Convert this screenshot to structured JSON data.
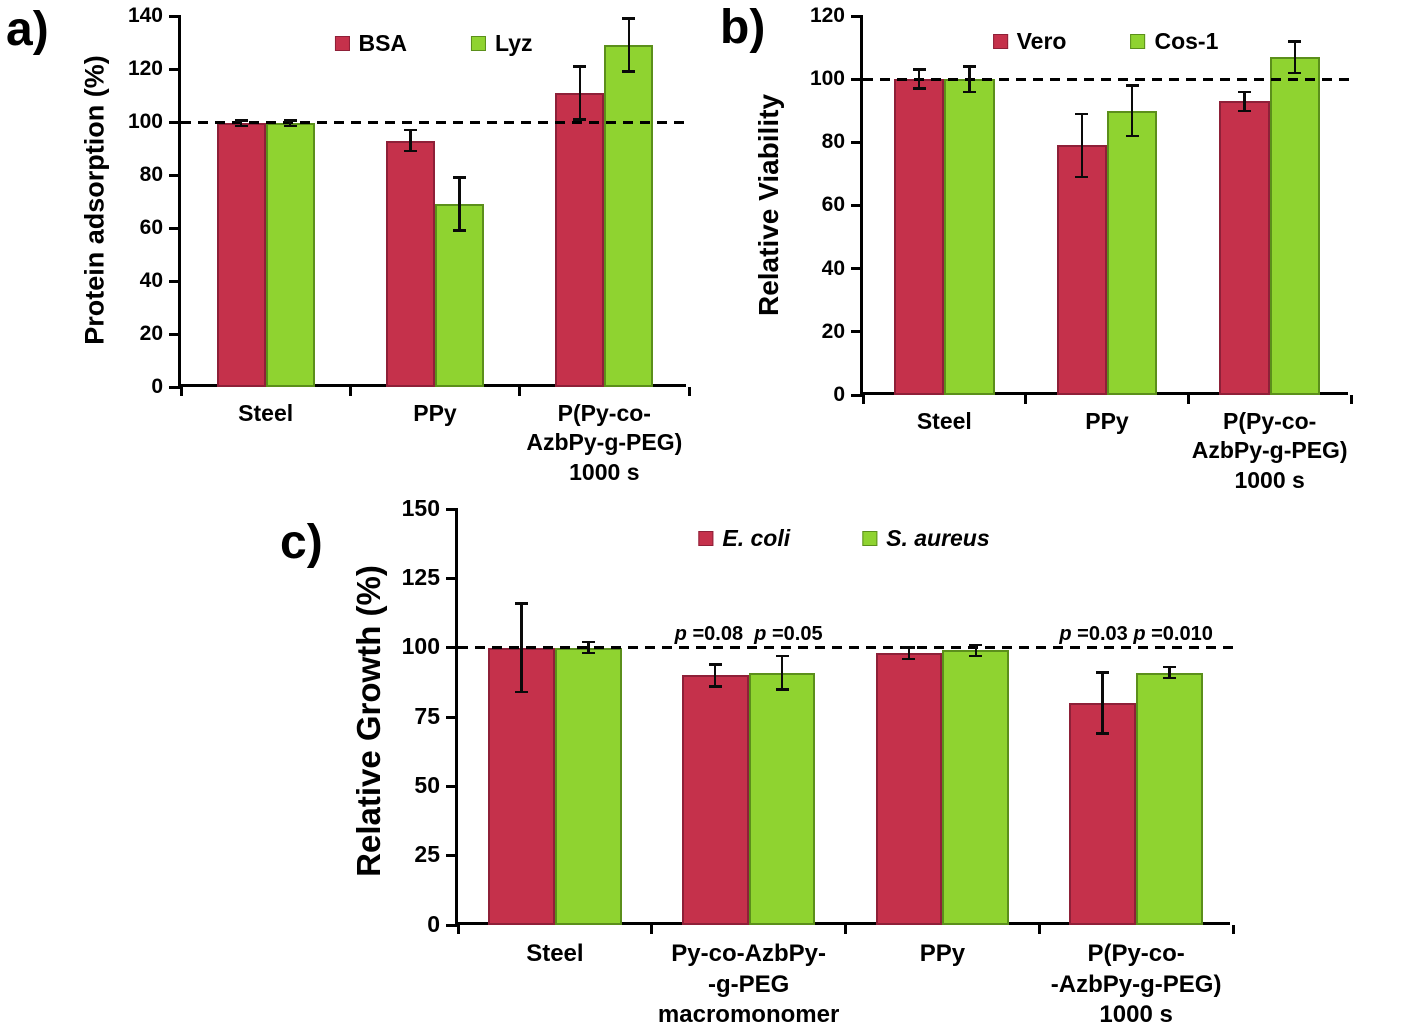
{
  "chart_data": [
    {
      "id": "a",
      "type": "bar",
      "panel_label": "a)",
      "ylabel": "Protein adsorption (%)",
      "ylim": [
        0,
        140
      ],
      "yticks": [
        0,
        20,
        40,
        60,
        80,
        100,
        120,
        140
      ],
      "dashed_line_y": 100,
      "grid": false,
      "legend_position": "top-center-inside",
      "categories": [
        [
          "Steel"
        ],
        [
          "PPy"
        ],
        [
          "P(Py-co-",
          "AzbPy-g-PEG)",
          "1000 s"
        ]
      ],
      "series": [
        {
          "name": "BSA",
          "italic": false,
          "color": "#C5314B",
          "border": "#8E2038",
          "values": [
            99.5,
            93,
            111
          ],
          "errors": [
            1,
            4,
            10
          ]
        },
        {
          "name": "Lyz",
          "italic": false,
          "color": "#8FD330",
          "border": "#5B8F1B",
          "values": [
            99.5,
            69,
            129
          ],
          "errors": [
            1,
            10,
            10
          ]
        }
      ],
      "annotations": []
    },
    {
      "id": "b",
      "type": "bar",
      "panel_label": "b)",
      "ylabel": "Relative Viability",
      "ylim": [
        0,
        120
      ],
      "yticks": [
        0,
        20,
        40,
        60,
        80,
        100,
        120
      ],
      "dashed_line_y": 100,
      "grid": false,
      "legend_position": "top-center-inside",
      "categories": [
        [
          "Steel"
        ],
        [
          "PPy"
        ],
        [
          "P(Py-co-",
          "AzbPy-g-PEG)",
          "1000 s"
        ]
      ],
      "series": [
        {
          "name": "Vero",
          "italic": false,
          "color": "#C5314B",
          "border": "#8E2038",
          "values": [
            100,
            79,
            93
          ],
          "errors": [
            3,
            10,
            3
          ]
        },
        {
          "name": "Cos-1",
          "italic": false,
          "color": "#8FD330",
          "border": "#5B8F1B",
          "values": [
            100,
            90,
            107
          ],
          "errors": [
            4,
            8,
            5
          ]
        }
      ],
      "annotations": []
    },
    {
      "id": "c",
      "type": "bar",
      "panel_label": "c)",
      "ylabel": "Relative Growth (%)",
      "ylim": [
        0,
        150
      ],
      "yticks": [
        0,
        25,
        50,
        75,
        100,
        125,
        150
      ],
      "dashed_line_y": 100,
      "grid": false,
      "legend_position": "top-center-inside",
      "categories": [
        [
          "Steel"
        ],
        [
          "Py-co-AzbPy-",
          "-g-PEG",
          "macromonomer"
        ],
        [
          "PPy"
        ],
        [
          "P(Py-co-",
          "-AzbPy-g-PEG)",
          "1000 s"
        ]
      ],
      "series": [
        {
          "name": "E. coli",
          "italic": true,
          "color": "#C5314B",
          "border": "#8E2038",
          "values": [
            100,
            90,
            98,
            80
          ],
          "errors": [
            16,
            4,
            2,
            11
          ]
        },
        {
          "name": "S. aureus",
          "italic": true,
          "color": "#8FD330",
          "border": "#5B8F1B",
          "values": [
            100,
            91,
            99,
            91
          ],
          "errors": [
            2,
            6,
            2,
            2
          ]
        }
      ],
      "annotations": [
        {
          "category_index": 1,
          "y": 100,
          "parts": [
            {
              "text": "p",
              "italic": true
            },
            {
              "text": " =0.08  ",
              "italic": false
            },
            {
              "text": "p",
              "italic": true
            },
            {
              "text": " =0.05",
              "italic": false
            }
          ]
        },
        {
          "category_index": 3,
          "y": 100,
          "parts": [
            {
              "text": "p",
              "italic": true
            },
            {
              "text": " =0.03 ",
              "italic": false
            },
            {
              "text": "p",
              "italic": true
            },
            {
              "text": " =0.010",
              "italic": false
            }
          ]
        }
      ]
    }
  ]
}
